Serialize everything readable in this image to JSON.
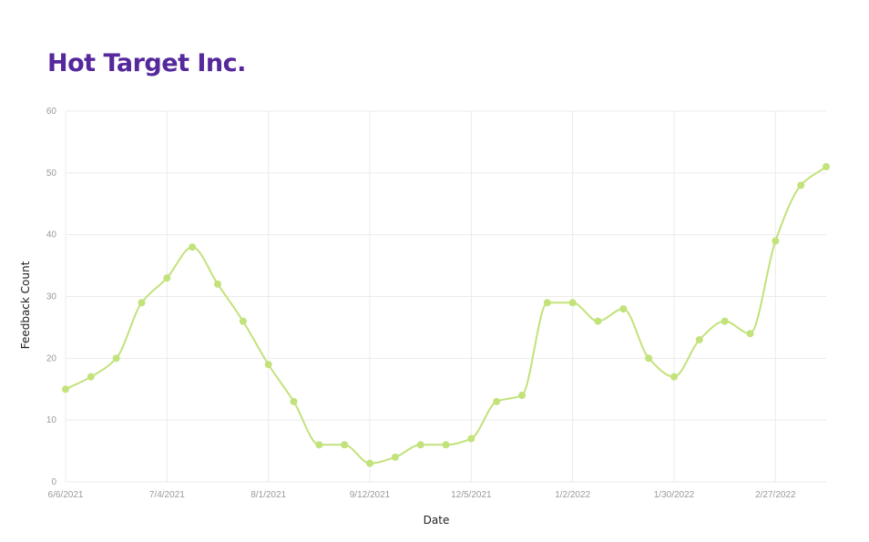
{
  "title": "Hot Target Inc.",
  "colors": {
    "title": "#55289b",
    "series": "#c2e27a",
    "grid": "#ebebeb"
  },
  "chart_data": {
    "type": "line",
    "title": "Hot Target Inc.",
    "xlabel": "Date",
    "ylabel": "Feedback Count",
    "ylim": [
      0,
      60
    ],
    "y_ticks": [
      0,
      10,
      20,
      30,
      40,
      50,
      60
    ],
    "x_tick_labels": [
      "6/6/2021",
      "7/4/2021",
      "8/1/2021",
      "9/12/2021",
      "12/5/2021",
      "1/2/2022",
      "1/30/2022",
      "2/27/2022"
    ],
    "grid": true,
    "legend": "none",
    "series": [
      {
        "values": [
          15,
          17,
          20,
          29,
          33,
          38,
          32,
          26,
          19,
          13,
          6,
          6,
          3,
          4,
          6,
          6,
          7,
          13,
          14,
          29,
          29,
          26,
          28,
          20,
          17,
          23,
          26,
          24,
          39,
          48,
          51
        ]
      }
    ]
  }
}
